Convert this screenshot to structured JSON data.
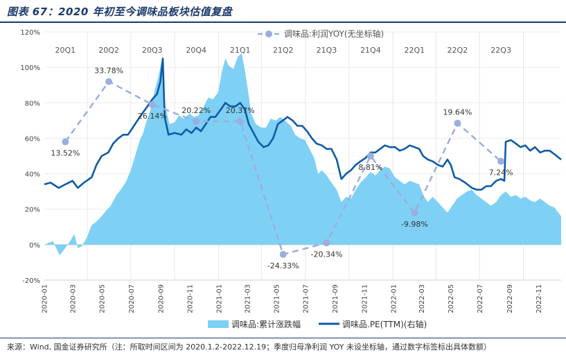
{
  "figure": {
    "title": "图表 67：2020 年初至今调味品板块估值复盘",
    "source": "来源：Wind, 国金证券研究所（注：所取时间区间为 2020.1.2-2022.12.19；季度归母净利润 YOY 未设坐标轴，通过数字标签标出具体数额）"
  },
  "colors": {
    "area": "#7fd0f5",
    "pe_line": "#0d5aa7",
    "yoy_line": "#9aaee0",
    "yoy_point": "#9aaee0",
    "title": "#1b3a6b",
    "axis": "#d0d0d0"
  },
  "chart_data": {
    "type": "line",
    "ylim": [
      -20,
      120
    ],
    "y_ticks": [
      -20,
      0,
      20,
      40,
      60,
      80,
      100,
      120
    ],
    "y_tick_labels": [
      "-20%",
      "0%",
      "20%",
      "40%",
      "60%",
      "80%",
      "100%",
      "120%"
    ],
    "x_range": [
      "2020-01-02",
      "2022-12-19"
    ],
    "x_tick_labels": [
      "2020-01",
      "2020-03",
      "2020-05",
      "2020-07",
      "2020-09",
      "2020-11",
      "2021-01",
      "2021-03",
      "2021-05",
      "2021-07",
      "2021-09",
      "2021-11",
      "2022-01",
      "2022-03",
      "2022-05",
      "2022-07",
      "2022-09",
      "2022-11"
    ],
    "quarter_labels": [
      {
        "label": "20Q1",
        "x": "2020-02-15"
      },
      {
        "label": "20Q2",
        "x": "2020-05-16"
      },
      {
        "label": "20Q3",
        "x": "2020-08-15"
      },
      {
        "label": "20Q4",
        "x": "2020-11-15"
      },
      {
        "label": "21Q1",
        "x": "2021-02-15"
      },
      {
        "label": "21Q2",
        "x": "2021-05-16"
      },
      {
        "label": "21Q3",
        "x": "2021-08-15"
      },
      {
        "label": "21Q4",
        "x": "2021-11-15"
      },
      {
        "label": "22Q1",
        "x": "2022-02-15"
      },
      {
        "label": "22Q2",
        "x": "2022-05-16"
      },
      {
        "label": "22Q3",
        "x": "2022-08-15"
      }
    ],
    "legend_top": "调味品:利润YOY(无坐标轴)",
    "legend_bottom": [
      "调味品:累计涨跌幅",
      "调味品.PE(TTM)(右轴)"
    ],
    "series": [
      {
        "name": "调味品:累计涨跌幅",
        "style": "area",
        "points": [
          [
            "2020-01-02",
            0
          ],
          [
            "2020-01-20",
            2
          ],
          [
            "2020-02-03",
            -6
          ],
          [
            "2020-02-12",
            -3
          ],
          [
            "2020-02-25",
            2
          ],
          [
            "2020-03-05",
            6
          ],
          [
            "2020-03-12",
            -2
          ],
          [
            "2020-03-20",
            -1
          ],
          [
            "2020-03-31",
            4
          ],
          [
            "2020-04-10",
            11
          ],
          [
            "2020-04-20",
            13
          ],
          [
            "2020-05-01",
            16
          ],
          [
            "2020-05-10",
            19
          ],
          [
            "2020-05-20",
            22
          ],
          [
            "2020-06-01",
            28
          ],
          [
            "2020-06-10",
            31
          ],
          [
            "2020-06-20",
            35
          ],
          [
            "2020-07-01",
            42
          ],
          [
            "2020-07-10",
            50
          ],
          [
            "2020-07-20",
            59
          ],
          [
            "2020-07-27",
            63
          ],
          [
            "2020-08-01",
            68
          ],
          [
            "2020-08-10",
            75
          ],
          [
            "2020-08-20",
            87
          ],
          [
            "2020-08-28",
            95
          ],
          [
            "2020-09-03",
            103
          ],
          [
            "2020-09-07",
            106
          ],
          [
            "2020-09-10",
            80
          ],
          [
            "2020-09-20",
            68
          ],
          [
            "2020-10-01",
            69
          ],
          [
            "2020-10-10",
            73
          ],
          [
            "2020-10-20",
            71
          ],
          [
            "2020-11-01",
            74
          ],
          [
            "2020-11-10",
            72
          ],
          [
            "2020-11-20",
            73
          ],
          [
            "2020-12-01",
            78
          ],
          [
            "2020-12-10",
            83
          ],
          [
            "2020-12-20",
            82
          ],
          [
            "2020-12-31",
            86
          ],
          [
            "2021-01-08",
            98
          ],
          [
            "2021-01-15",
            105
          ],
          [
            "2021-01-22",
            101
          ],
          [
            "2021-02-01",
            99
          ],
          [
            "2021-02-10",
            106
          ],
          [
            "2021-02-18",
            108
          ],
          [
            "2021-02-25",
            98
          ],
          [
            "2021-03-05",
            84
          ],
          [
            "2021-03-10",
            74
          ],
          [
            "2021-03-20",
            68
          ],
          [
            "2021-04-01",
            66
          ],
          [
            "2021-04-10",
            66
          ],
          [
            "2021-04-20",
            71
          ],
          [
            "2021-05-01",
            70
          ],
          [
            "2021-05-10",
            72
          ],
          [
            "2021-05-20",
            70
          ],
          [
            "2021-06-01",
            67
          ],
          [
            "2021-06-10",
            62
          ],
          [
            "2021-06-20",
            60
          ],
          [
            "2021-07-01",
            59
          ],
          [
            "2021-07-10",
            54
          ],
          [
            "2021-07-20",
            49
          ],
          [
            "2021-07-28",
            40
          ],
          [
            "2021-08-05",
            42
          ],
          [
            "2021-08-15",
            39
          ],
          [
            "2021-08-25",
            35
          ],
          [
            "2021-09-05",
            31
          ],
          [
            "2021-09-15",
            24
          ],
          [
            "2021-09-25",
            27
          ],
          [
            "2021-10-05",
            26
          ],
          [
            "2021-10-15",
            31
          ],
          [
            "2021-10-25",
            35
          ],
          [
            "2021-11-05",
            38
          ],
          [
            "2021-11-15",
            41
          ],
          [
            "2021-11-25",
            39
          ],
          [
            "2021-12-05",
            42
          ],
          [
            "2021-12-15",
            44
          ],
          [
            "2021-12-25",
            43
          ],
          [
            "2022-01-05",
            38
          ],
          [
            "2022-01-15",
            36
          ],
          [
            "2022-01-25",
            34
          ],
          [
            "2022-02-05",
            36
          ],
          [
            "2022-02-15",
            35
          ],
          [
            "2022-02-25",
            34
          ],
          [
            "2022-03-05",
            28
          ],
          [
            "2022-03-15",
            24
          ],
          [
            "2022-03-25",
            27
          ],
          [
            "2022-04-05",
            24
          ],
          [
            "2022-04-15",
            21
          ],
          [
            "2022-04-25",
            18
          ],
          [
            "2022-05-05",
            22
          ],
          [
            "2022-05-15",
            26
          ],
          [
            "2022-05-25",
            28
          ],
          [
            "2022-06-05",
            30
          ],
          [
            "2022-06-15",
            31
          ],
          [
            "2022-06-25",
            28
          ],
          [
            "2022-07-05",
            26
          ],
          [
            "2022-07-15",
            24
          ],
          [
            "2022-07-25",
            22
          ],
          [
            "2022-08-05",
            24
          ],
          [
            "2022-08-15",
            28
          ],
          [
            "2022-08-25",
            30
          ],
          [
            "2022-09-05",
            27
          ],
          [
            "2022-09-15",
            28
          ],
          [
            "2022-09-25",
            26
          ],
          [
            "2022-10-05",
            27
          ],
          [
            "2022-10-15",
            25
          ],
          [
            "2022-10-25",
            24
          ],
          [
            "2022-11-05",
            26
          ],
          [
            "2022-11-15",
            24
          ],
          [
            "2022-11-25",
            22
          ],
          [
            "2022-12-05",
            21
          ],
          [
            "2022-12-19",
            16
          ]
        ]
      },
      {
        "name": "调味品.PE(TTM)(右轴)",
        "style": "line",
        "points": [
          [
            "2020-01-02",
            34
          ],
          [
            "2020-01-15",
            35
          ],
          [
            "2020-02-01",
            32
          ],
          [
            "2020-02-15",
            34
          ],
          [
            "2020-03-01",
            36
          ],
          [
            "2020-03-12",
            32
          ],
          [
            "2020-03-25",
            35
          ],
          [
            "2020-04-10",
            38
          ],
          [
            "2020-04-20",
            45
          ],
          [
            "2020-05-01",
            50
          ],
          [
            "2020-05-15",
            52
          ],
          [
            "2020-05-25",
            57
          ],
          [
            "2020-06-05",
            60
          ],
          [
            "2020-06-15",
            62
          ],
          [
            "2020-06-25",
            62
          ],
          [
            "2020-07-05",
            66
          ],
          [
            "2020-07-15",
            70
          ],
          [
            "2020-07-25",
            74
          ],
          [
            "2020-08-05",
            78
          ],
          [
            "2020-08-15",
            82
          ],
          [
            "2020-08-25",
            85
          ],
          [
            "2020-09-01",
            92
          ],
          [
            "2020-09-06",
            105
          ],
          [
            "2020-09-10",
            72
          ],
          [
            "2020-09-18",
            62
          ],
          [
            "2020-10-01",
            63
          ],
          [
            "2020-10-15",
            62
          ],
          [
            "2020-10-25",
            65
          ],
          [
            "2020-11-05",
            63
          ],
          [
            "2020-11-15",
            66
          ],
          [
            "2020-11-25",
            64
          ],
          [
            "2020-12-05",
            68
          ],
          [
            "2020-12-15",
            72
          ],
          [
            "2020-12-25",
            72
          ],
          [
            "2021-01-05",
            76
          ],
          [
            "2021-01-15",
            80
          ],
          [
            "2021-01-25",
            78
          ],
          [
            "2021-02-05",
            78
          ],
          [
            "2021-02-15",
            80
          ],
          [
            "2021-02-25",
            76
          ],
          [
            "2021-03-05",
            68
          ],
          [
            "2021-03-15",
            63
          ],
          [
            "2021-03-25",
            58
          ],
          [
            "2021-04-05",
            55
          ],
          [
            "2021-04-15",
            56
          ],
          [
            "2021-04-25",
            60
          ],
          [
            "2021-05-05",
            68
          ],
          [
            "2021-05-15",
            70
          ],
          [
            "2021-05-25",
            72
          ],
          [
            "2021-06-05",
            70
          ],
          [
            "2021-06-15",
            67
          ],
          [
            "2021-06-25",
            67
          ],
          [
            "2021-07-05",
            64
          ],
          [
            "2021-07-15",
            60
          ],
          [
            "2021-07-25",
            57
          ],
          [
            "2021-08-05",
            56
          ],
          [
            "2021-08-15",
            54
          ],
          [
            "2021-08-25",
            54
          ],
          [
            "2021-09-05",
            48
          ],
          [
            "2021-09-15",
            37
          ],
          [
            "2021-09-25",
            40
          ],
          [
            "2021-10-05",
            42
          ],
          [
            "2021-10-15",
            45
          ],
          [
            "2021-10-25",
            47
          ],
          [
            "2021-11-05",
            49
          ],
          [
            "2021-11-15",
            52
          ],
          [
            "2021-11-25",
            52
          ],
          [
            "2021-12-05",
            54
          ],
          [
            "2021-12-15",
            56
          ],
          [
            "2021-12-25",
            55
          ],
          [
            "2022-01-05",
            55
          ],
          [
            "2022-01-15",
            53
          ],
          [
            "2022-01-25",
            54
          ],
          [
            "2022-02-05",
            56
          ],
          [
            "2022-02-15",
            55
          ],
          [
            "2022-02-25",
            54
          ],
          [
            "2022-03-05",
            50
          ],
          [
            "2022-03-15",
            48
          ],
          [
            "2022-03-25",
            47
          ],
          [
            "2022-04-05",
            45
          ],
          [
            "2022-04-15",
            44
          ],
          [
            "2022-04-25",
            48
          ],
          [
            "2022-05-02",
            45
          ],
          [
            "2022-05-10",
            38
          ],
          [
            "2022-05-20",
            37
          ],
          [
            "2022-06-01",
            35
          ],
          [
            "2022-06-15",
            32
          ],
          [
            "2022-06-25",
            31
          ],
          [
            "2022-07-05",
            31
          ],
          [
            "2022-07-15",
            33
          ],
          [
            "2022-07-25",
            33
          ],
          [
            "2022-08-05",
            36
          ],
          [
            "2022-08-15",
            37
          ],
          [
            "2022-08-22",
            36
          ],
          [
            "2022-08-25",
            58
          ],
          [
            "2022-09-05",
            59
          ],
          [
            "2022-09-15",
            57
          ],
          [
            "2022-09-25",
            55
          ],
          [
            "2022-10-05",
            56
          ],
          [
            "2022-10-15",
            53
          ],
          [
            "2022-10-25",
            55
          ],
          [
            "2022-11-05",
            52
          ],
          [
            "2022-11-15",
            53
          ],
          [
            "2022-11-25",
            53
          ],
          [
            "2022-12-05",
            51
          ],
          [
            "2022-12-19",
            48
          ]
        ]
      },
      {
        "name": "调味品:利润YOY(无坐标轴)",
        "style": "dashed-markers",
        "points": [
          {
            "x": "2020-02-15",
            "y": 58,
            "label": "13.52%",
            "label_pos": "below"
          },
          {
            "x": "2020-05-16",
            "y": 92,
            "label": "33.78%",
            "label_pos": "above"
          },
          {
            "x": "2020-08-15",
            "y": 79,
            "label": "26.14%",
            "label_pos": "below"
          },
          {
            "x": "2020-11-15",
            "y": 69.5,
            "label": "20.22%",
            "label_pos": "above"
          },
          {
            "x": "2021-02-15",
            "y": 69.5,
            "label": "20.37%",
            "label_pos": "above"
          },
          {
            "x": "2021-05-16",
            "y": -5.5,
            "label": "-24.33%",
            "label_pos": "below"
          },
          {
            "x": "2021-08-15",
            "y": 1,
            "label": "-20.34%",
            "label_pos": "below"
          },
          {
            "x": "2021-11-15",
            "y": 50,
            "label": "8.81%",
            "label_pos": "below"
          },
          {
            "x": "2022-02-15",
            "y": 18,
            "label": "-9.98%",
            "label_pos": "below"
          },
          {
            "x": "2022-05-16",
            "y": 68.5,
            "label": "19.64%",
            "label_pos": "above"
          },
          {
            "x": "2022-08-15",
            "y": 47,
            "label": "7.24%",
            "label_pos": "below"
          }
        ]
      }
    ]
  }
}
